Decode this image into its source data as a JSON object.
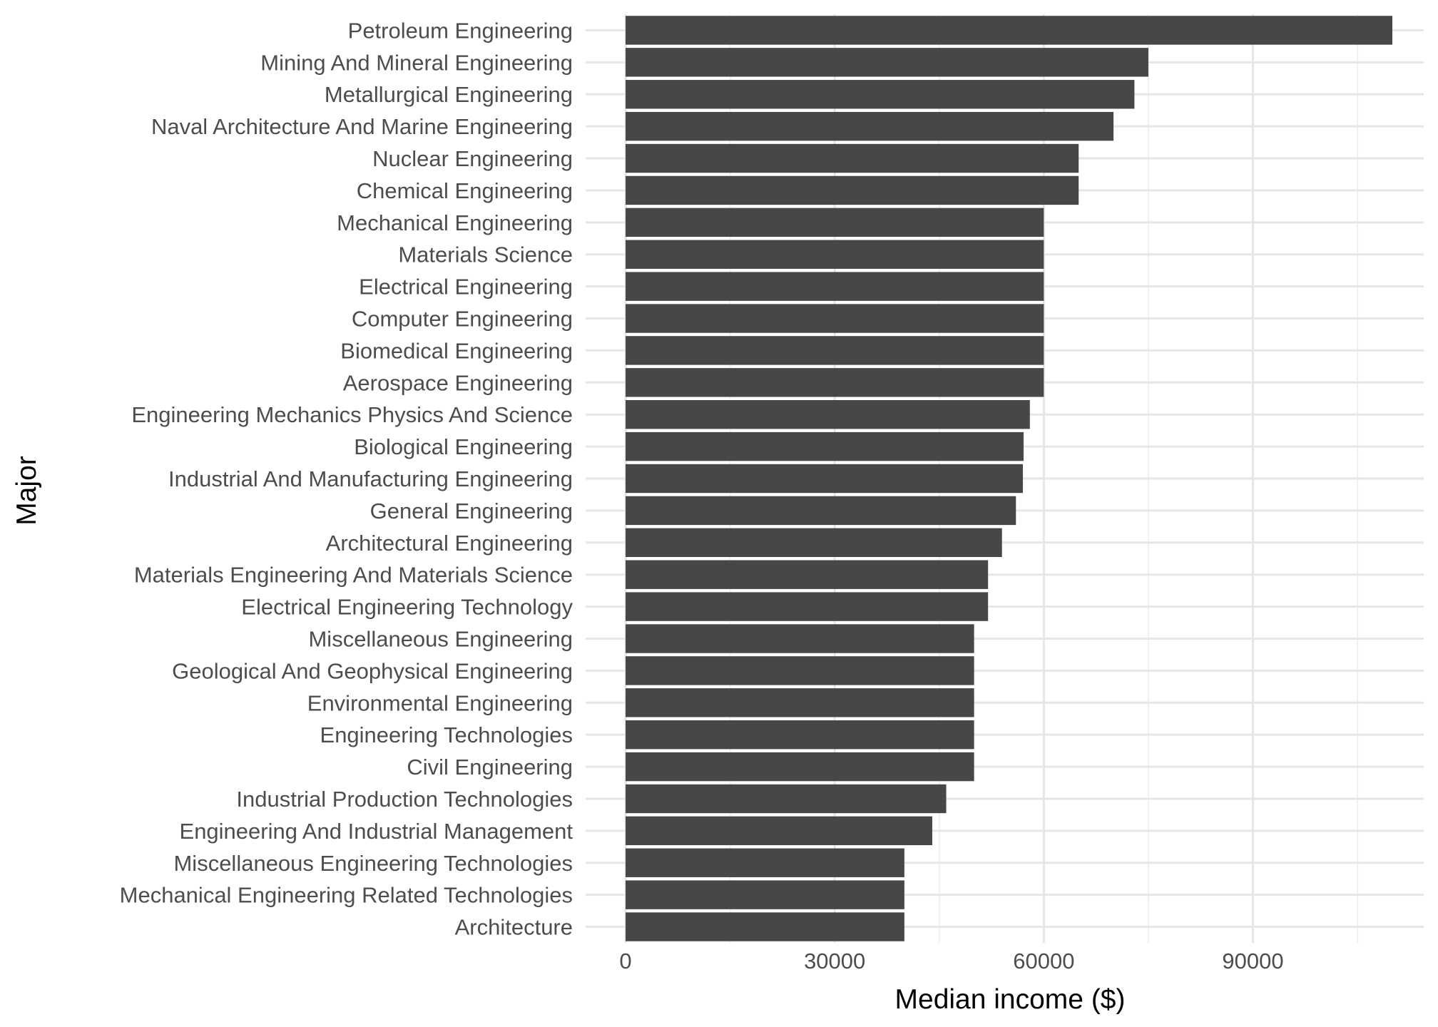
{
  "chart_data": {
    "type": "bar",
    "orientation": "horizontal",
    "xlabel": "Median income ($)",
    "ylabel": "Major",
    "xlim": [
      0,
      114000
    ],
    "x_ticks": [
      0,
      30000,
      60000,
      90000
    ],
    "x_tick_labels": [
      "0",
      "30000",
      "60000",
      "90000"
    ],
    "grid": true,
    "bar_color": "#474747",
    "categories": [
      "Petroleum Engineering",
      "Mining And Mineral Engineering",
      "Metallurgical Engineering",
      "Naval Architecture And Marine Engineering",
      "Nuclear Engineering",
      "Chemical Engineering",
      "Mechanical Engineering",
      "Materials Science",
      "Electrical Engineering",
      "Computer Engineering",
      "Biomedical Engineering",
      "Aerospace Engineering",
      "Engineering Mechanics Physics And Science",
      "Biological Engineering",
      "Industrial And Manufacturing Engineering",
      "General Engineering",
      "Architectural Engineering",
      "Materials Engineering And Materials Science",
      "Electrical Engineering Technology",
      "Miscellaneous Engineering",
      "Geological And Geophysical Engineering",
      "Environmental Engineering",
      "Engineering Technologies",
      "Civil Engineering",
      "Industrial Production Technologies",
      "Engineering And Industrial Management",
      "Miscellaneous Engineering Technologies",
      "Mechanical Engineering Related Technologies",
      "Architecture"
    ],
    "values": [
      110000,
      75000,
      73000,
      70000,
      65000,
      65000,
      60000,
      60000,
      60000,
      60000,
      60000,
      60000,
      58000,
      57100,
      57000,
      56000,
      54000,
      52000,
      52000,
      50000,
      50000,
      50000,
      50000,
      50000,
      46000,
      44000,
      40000,
      40000,
      40000
    ]
  }
}
